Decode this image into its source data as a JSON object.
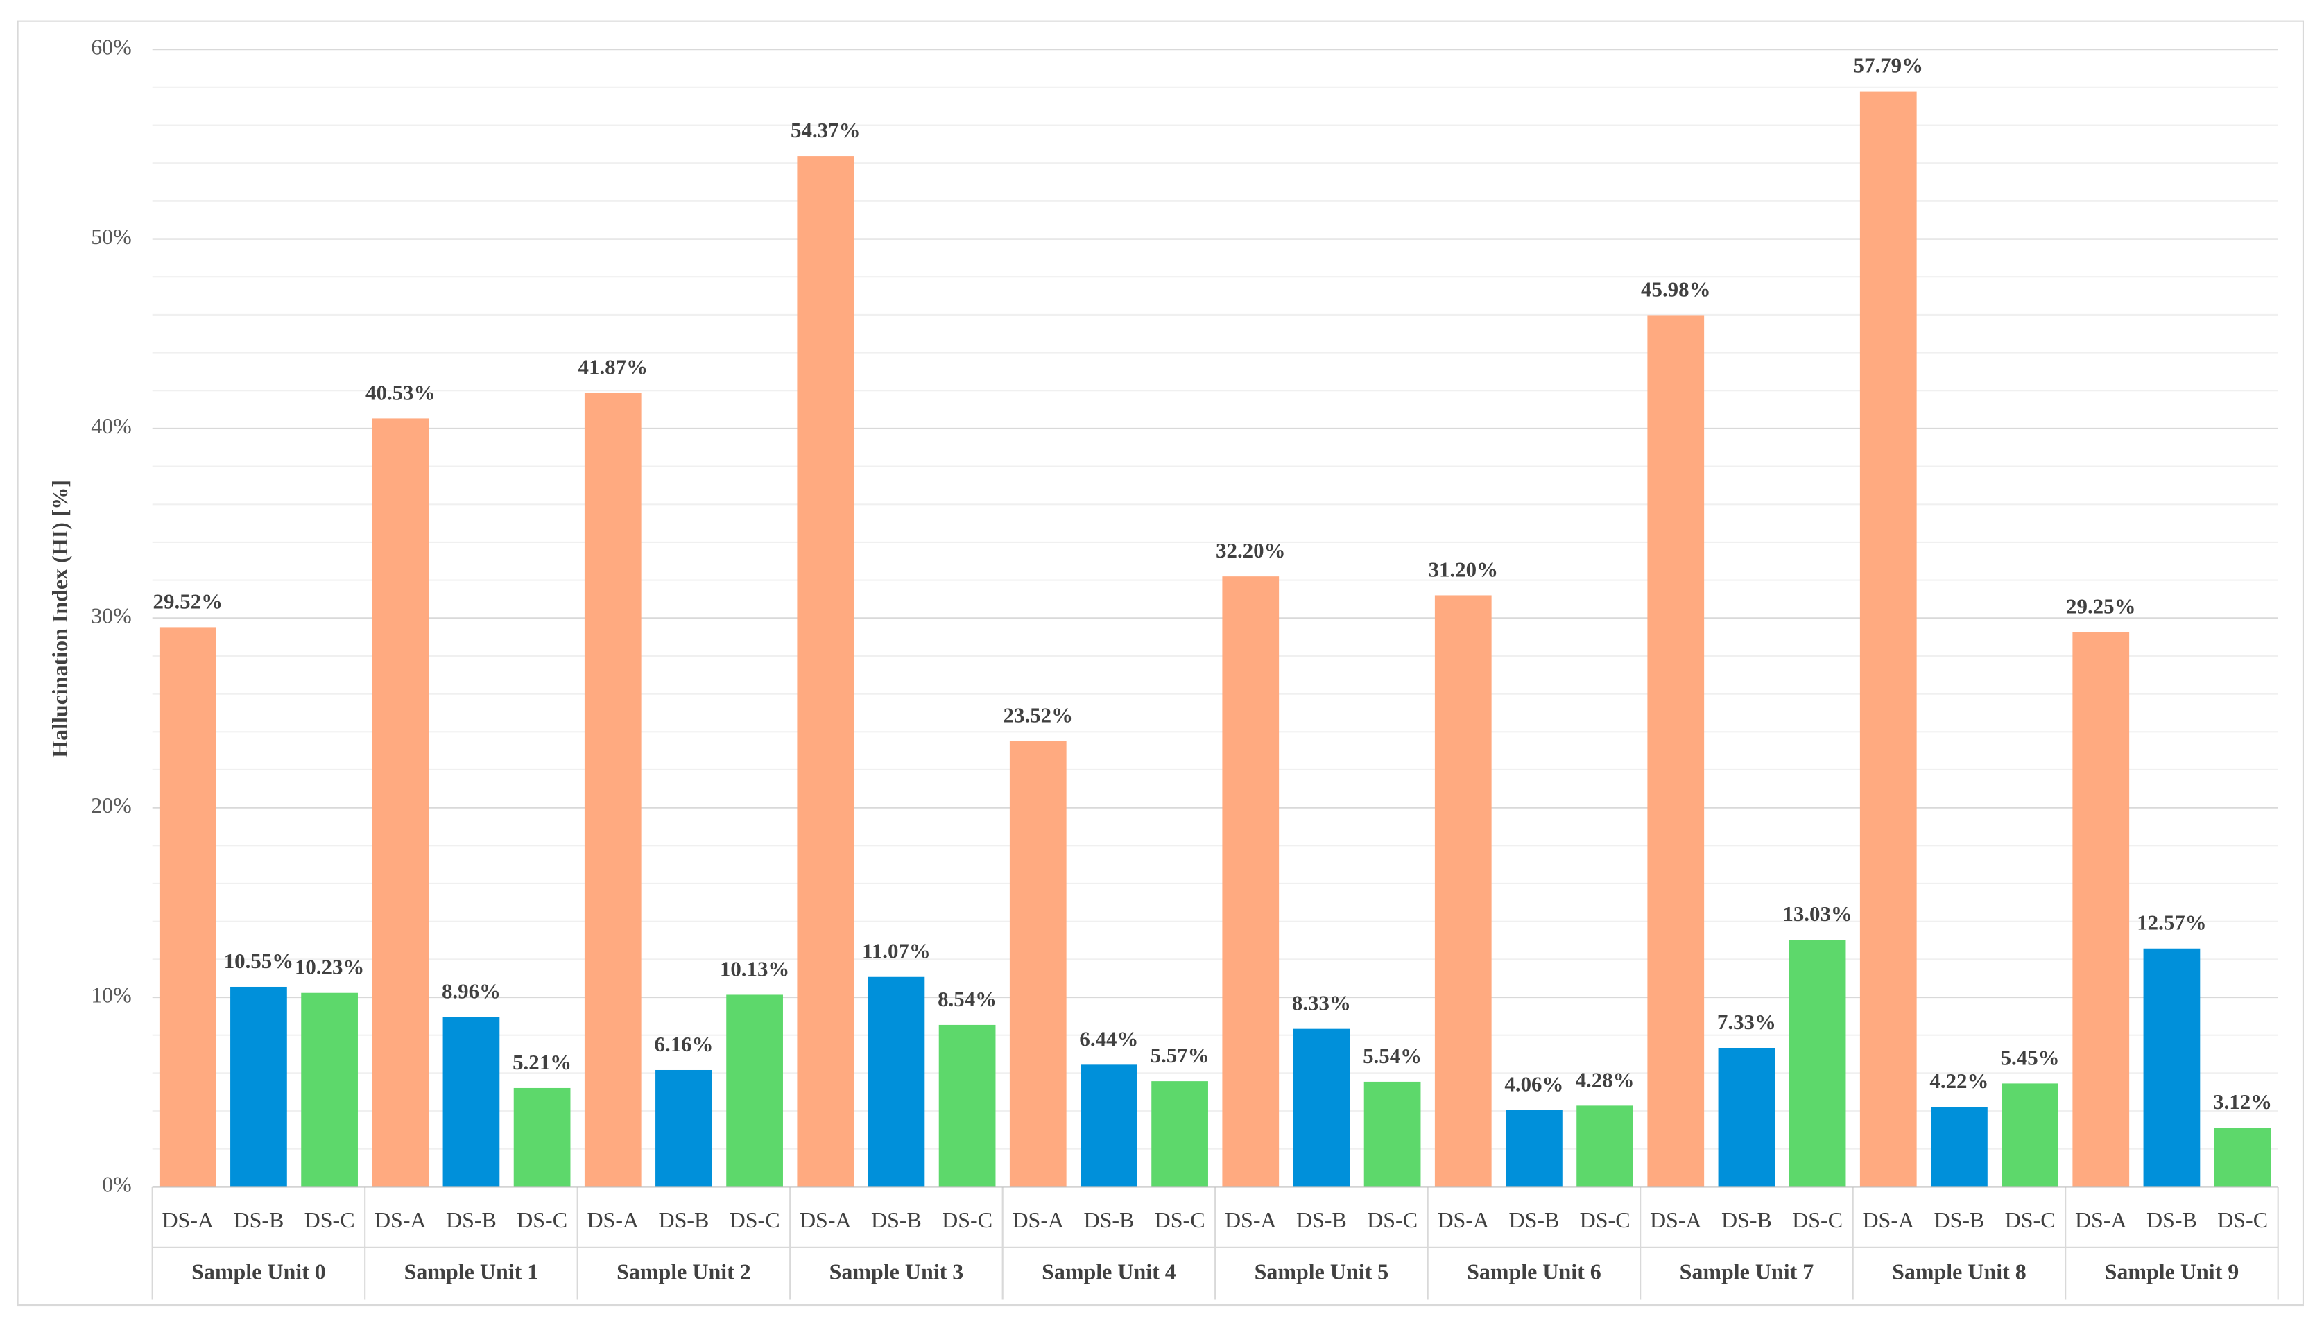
{
  "chart_data": {
    "type": "bar",
    "y_label": "Hallucination Index (HI) [%]",
    "categories": [
      "Sample Unit 0",
      "Sample Unit 1",
      "Sample Unit 2",
      "Sample Unit 3",
      "Sample Unit 4",
      "Sample Unit 5",
      "Sample Unit 6",
      "Sample Unit 7",
      "Sample Unit 8",
      "Sample Unit 9"
    ],
    "series": [
      {
        "name": "DS-A",
        "color": "#FFAA80",
        "values": [
          29.52,
          40.53,
          41.87,
          54.37,
          23.52,
          32.2,
          31.2,
          45.98,
          57.79,
          29.25
        ],
        "value_labels": [
          "29.52%",
          "40.53%",
          "41.87%",
          "54.37%",
          "23.52%",
          "32.20%",
          "31.20%",
          "45.98%",
          "57.79%",
          "29.25%"
        ]
      },
      {
        "name": "DS-B",
        "color": "#0090DA",
        "values": [
          10.55,
          8.96,
          6.16,
          11.07,
          6.44,
          8.33,
          4.06,
          7.33,
          4.22,
          12.57
        ],
        "value_labels": [
          "10.55%",
          "8.96%",
          "6.16%",
          "11.07%",
          "6.44%",
          "8.33%",
          "4.06%",
          "7.33%",
          "4.22%",
          "12.57%"
        ]
      },
      {
        "name": "DS-C",
        "color": "#5DD86B",
        "values": [
          10.23,
          5.21,
          10.13,
          8.54,
          5.57,
          5.54,
          4.28,
          13.03,
          5.45,
          3.12
        ],
        "value_labels": [
          "10.23%",
          "5.21%",
          "10.13%",
          "8.54%",
          "5.57%",
          "5.54%",
          "4.28%",
          "13.03%",
          "5.45%",
          "3.12%"
        ]
      }
    ],
    "ylim": [
      0,
      60
    ],
    "yticks": [
      {
        "value": 0,
        "label": "0%"
      },
      {
        "value": 10,
        "label": "10%"
      },
      {
        "value": 20,
        "label": "20%"
      },
      {
        "value": 30,
        "label": "30%"
      },
      {
        "value": 40,
        "label": "40%"
      },
      {
        "value": 50,
        "label": "50%"
      },
      {
        "value": 60,
        "label": "60%"
      }
    ],
    "grid": true
  }
}
